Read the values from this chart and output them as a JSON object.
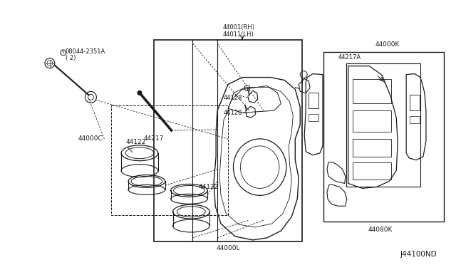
{
  "bg_color": "#ffffff",
  "line_color": "#1a1a1a",
  "figsize": [
    6.4,
    3.72
  ],
  "dpi": 100,
  "diagram_id": "J44100ND",
  "labels": {
    "part_label": "08044-2351A",
    "count": "( 2)",
    "l44000C": "44000C",
    "l44217": "44217",
    "l44122_up": "44122",
    "l44122_dn": "44122",
    "l44128_up": "44128",
    "l44128_dn": "44128",
    "l44001": "44001(RH)\n44011(LH)",
    "l44000L": "44000L",
    "l44000K": "44000K",
    "l44217A": "44217A",
    "l44080K": "44080K"
  }
}
